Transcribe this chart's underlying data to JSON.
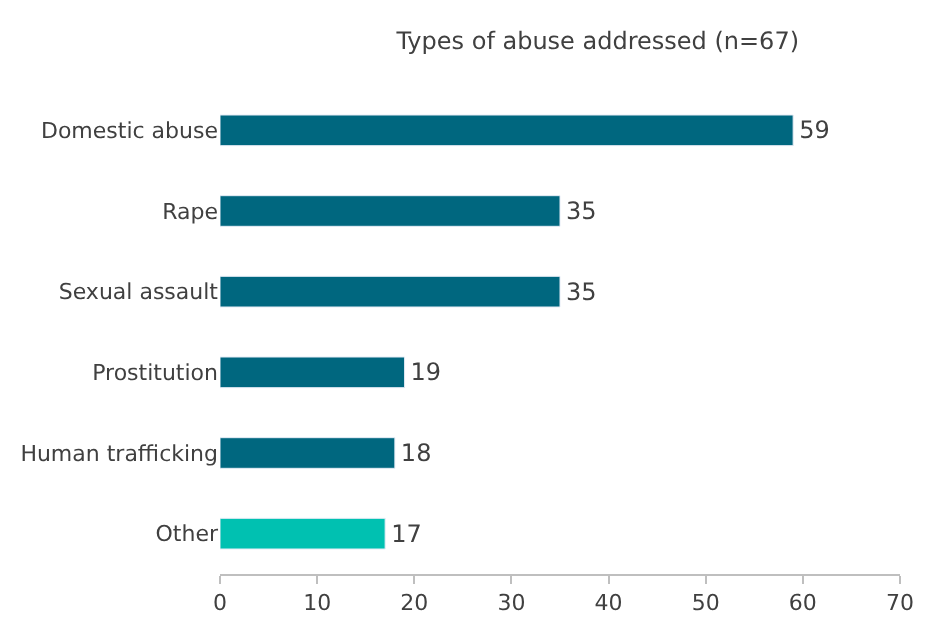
{
  "chart_data": {
    "type": "bar",
    "orientation": "horizontal",
    "title": "Types of abuse addressed (n=67)",
    "categories": [
      "Domestic abuse",
      "Rape",
      "Sexual assault",
      "Prostitution",
      "Human trafficking",
      "Other"
    ],
    "values": [
      59,
      35,
      35,
      19,
      18,
      17
    ],
    "colors": [
      "#00677f",
      "#00677f",
      "#00677f",
      "#00677f",
      "#00677f",
      "#00c1b1"
    ],
    "xlim": [
      0,
      70
    ],
    "xticks": [
      0,
      10,
      20,
      30,
      40,
      50,
      60,
      70
    ],
    "data_labels": true,
    "legend": false
  }
}
